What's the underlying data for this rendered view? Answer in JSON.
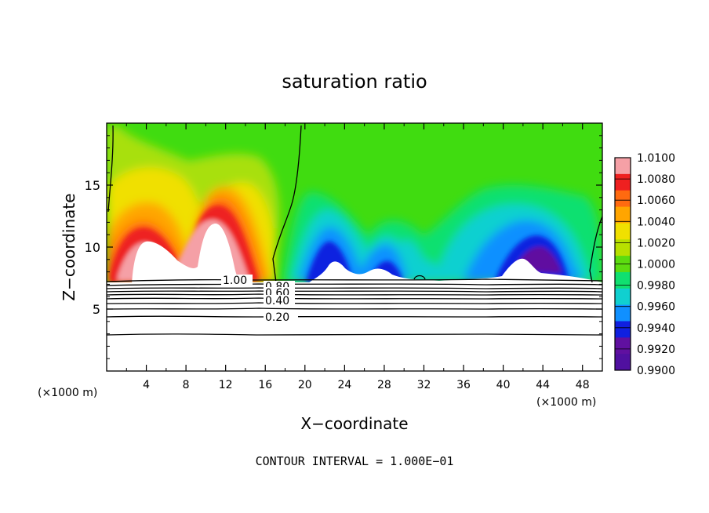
{
  "chart_data": {
    "type": "heatmap",
    "title": "saturation ratio",
    "xlabel": "X−coordinate",
    "ylabel": "Z−coordinate",
    "x_unit": "(×1000 m)",
    "z_unit": "(×1000 m)",
    "footer": "CONTOUR INTERVAL = 1.000E−01",
    "xlim": [
      0,
      50
    ],
    "ylim": [
      0,
      20
    ],
    "x_ticks": [
      "4",
      "8",
      "12",
      "16",
      "20",
      "24",
      "28",
      "32",
      "36",
      "40",
      "44",
      "48"
    ],
    "y_ticks": [
      "5",
      "10",
      "15"
    ],
    "colorbar": {
      "labels": [
        "1.0100",
        "1.0080",
        "1.0060",
        "1.0040",
        "1.0020",
        "1.0000",
        "0.9980",
        "0.9960",
        "0.9940",
        "0.9920",
        "0.9900"
      ],
      "colors": [
        "#f5a0a6",
        "#ee2020",
        "#ff6a10",
        "#ffa500",
        "#f0e000",
        "#b8e000",
        "#5cdc10",
        "#10e070",
        "#10d0d0",
        "#1090ff",
        "#1020e0",
        "#6010a0",
        "#5010a0"
      ]
    },
    "contour_labels": [
      "1.00",
      "0.80",
      "0.60",
      "0.40",
      "0.20"
    ],
    "contour_levels": [
      1.0,
      0.9,
      0.8,
      0.7,
      0.6,
      0.5,
      0.4,
      0.3,
      0.2,
      0.1
    ]
  }
}
